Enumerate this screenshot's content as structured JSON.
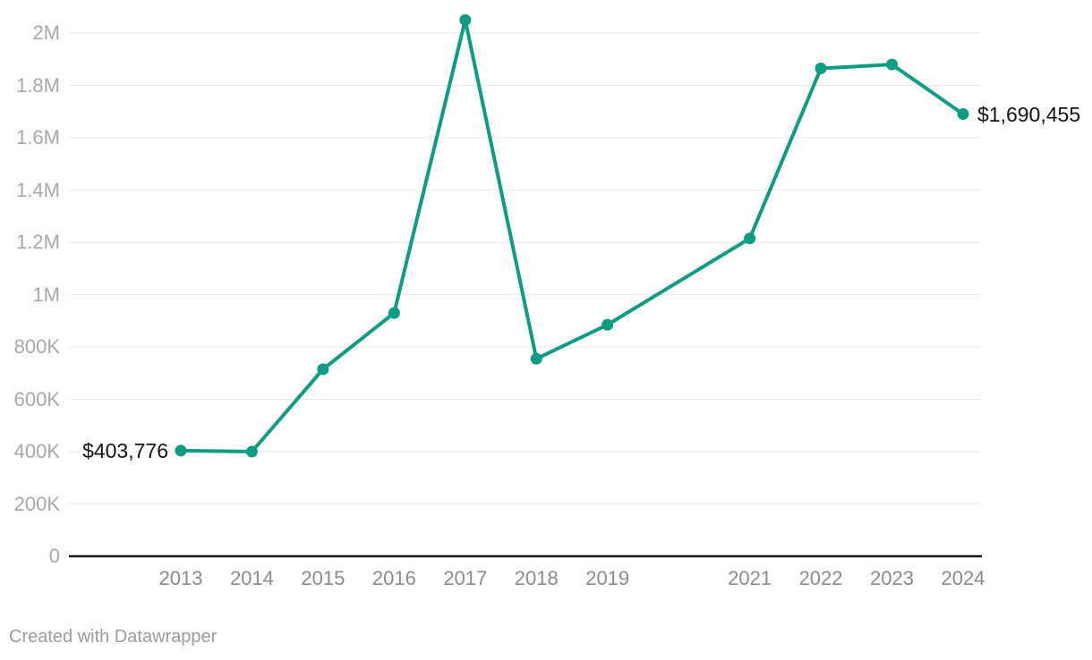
{
  "chart_data": {
    "type": "line",
    "title": "",
    "xlabel": "",
    "ylabel": "",
    "legend": "none",
    "grid": "horizontal-only",
    "x": [
      2013,
      2014,
      2015,
      2016,
      2017,
      2018,
      2019,
      2020,
      2021,
      2022,
      2023,
      2024
    ],
    "values": [
      403776,
      400000,
      715000,
      930000,
      2050000,
      755000,
      885000,
      null,
      1215000,
      1865000,
      1880000,
      1690455
    ],
    "x_tick_labels": [
      "2013",
      "2014",
      "2015",
      "2016",
      "2017",
      "2018",
      "2019",
      "2021",
      "2022",
      "2023",
      "2024"
    ],
    "y_ticks": [
      {
        "value": 0,
        "label": "0"
      },
      {
        "value": 200000,
        "label": "200K"
      },
      {
        "value": 400000,
        "label": "400K"
      },
      {
        "value": 600000,
        "label": "600K"
      },
      {
        "value": 800000,
        "label": "800K"
      },
      {
        "value": 1000000,
        "label": "1M"
      },
      {
        "value": 1200000,
        "label": "1.2M"
      },
      {
        "value": 1400000,
        "label": "1.4M"
      },
      {
        "value": 1600000,
        "label": "1.6M"
      },
      {
        "value": 1800000,
        "label": "1.8M"
      },
      {
        "value": 2000000,
        "label": "2M"
      }
    ],
    "ylim": [
      0,
      2000000
    ],
    "annotations": {
      "first": {
        "year": 2013,
        "text": "$403,776"
      },
      "last": {
        "year": 2024,
        "text": "$1,690,455"
      }
    },
    "colors": {
      "line": "#0e9c84",
      "baseline_axis": "#19191b",
      "gridline": "#e9e9e9",
      "y_tick_text": "#a9a9a9",
      "x_tick_text": "#8c8c8c",
      "value_label_text": "#131313",
      "footer_text": "#9c9c9c"
    }
  },
  "footer": {
    "attribution": "Created with Datawrapper"
  }
}
